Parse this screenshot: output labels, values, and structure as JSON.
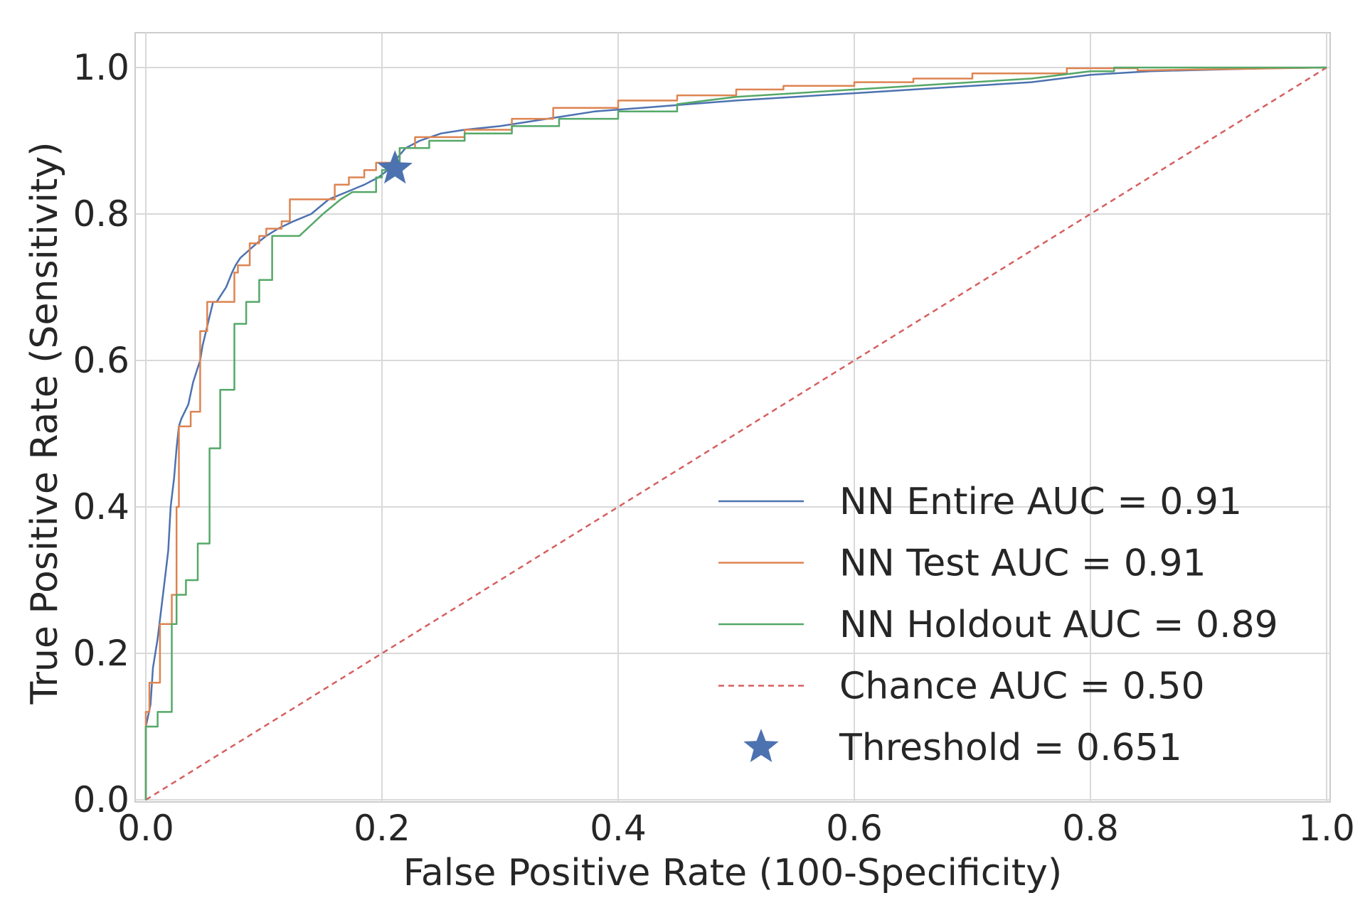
{
  "chart_data": {
    "type": "line",
    "title": "",
    "xlabel": "False Positive Rate (100-Specificity)",
    "ylabel": "True Positive Rate (Sensitivity)",
    "xlim": [
      0.0,
      1.0
    ],
    "ylim": [
      0.0,
      1.0
    ],
    "xticks": [
      0.0,
      0.2,
      0.4,
      0.6,
      0.8,
      1.0
    ],
    "yticks": [
      0.0,
      0.2,
      0.4,
      0.6,
      0.8,
      1.0
    ],
    "xtick_labels": [
      "0.0",
      "0.2",
      "0.4",
      "0.6",
      "0.8",
      "1.0"
    ],
    "ytick_labels": [
      "0.0",
      "0.2",
      "0.4",
      "0.6",
      "0.8",
      "1.0"
    ],
    "grid": true,
    "legend_position": "lower-right",
    "series": [
      {
        "name": "NN Entire AUC = 0.91",
        "color": "#4c72b0",
        "style": "solid",
        "x": [
          0.0,
          0.0,
          0.004,
          0.006,
          0.008,
          0.01,
          0.013,
          0.016,
          0.019,
          0.021,
          0.024,
          0.026,
          0.028,
          0.03,
          0.033,
          0.036,
          0.04,
          0.044,
          0.046,
          0.048,
          0.051,
          0.054,
          0.057,
          0.06,
          0.064,
          0.068,
          0.073,
          0.076,
          0.08,
          0.087,
          0.094,
          0.102,
          0.112,
          0.125,
          0.14,
          0.155,
          0.17,
          0.185,
          0.197,
          0.205,
          0.212,
          0.22,
          0.232,
          0.25,
          0.27,
          0.3,
          0.34,
          0.38,
          0.42,
          0.46,
          0.5,
          0.55,
          0.6,
          0.65,
          0.7,
          0.75,
          0.8,
          0.85,
          0.9,
          0.95,
          1.0
        ],
        "y": [
          0.0,
          0.1,
          0.13,
          0.18,
          0.2,
          0.22,
          0.26,
          0.3,
          0.34,
          0.4,
          0.44,
          0.48,
          0.51,
          0.52,
          0.53,
          0.54,
          0.57,
          0.59,
          0.6,
          0.62,
          0.64,
          0.66,
          0.68,
          0.68,
          0.69,
          0.7,
          0.72,
          0.73,
          0.74,
          0.75,
          0.76,
          0.77,
          0.78,
          0.79,
          0.8,
          0.82,
          0.83,
          0.84,
          0.85,
          0.86,
          0.875,
          0.89,
          0.9,
          0.91,
          0.915,
          0.92,
          0.93,
          0.94,
          0.945,
          0.95,
          0.955,
          0.96,
          0.965,
          0.97,
          0.975,
          0.98,
          0.99,
          0.995,
          0.997,
          0.999,
          1.0
        ]
      },
      {
        "name": "NN Test AUC = 0.91",
        "color": "#dd8452",
        "style": "solid",
        "x": [
          0.0,
          0.0,
          0.003,
          0.003,
          0.012,
          0.012,
          0.022,
          0.022,
          0.026,
          0.026,
          0.028,
          0.028,
          0.038,
          0.038,
          0.046,
          0.046,
          0.052,
          0.052,
          0.06,
          0.06,
          0.075,
          0.075,
          0.078,
          0.078,
          0.088,
          0.088,
          0.096,
          0.096,
          0.102,
          0.102,
          0.115,
          0.115,
          0.122,
          0.122,
          0.13,
          0.13,
          0.16,
          0.16,
          0.172,
          0.172,
          0.185,
          0.185,
          0.195,
          0.195,
          0.215,
          0.215,
          0.228,
          0.228,
          0.27,
          0.27,
          0.31,
          0.31,
          0.345,
          0.345,
          0.4,
          0.4,
          0.45,
          0.45,
          0.5,
          0.5,
          0.54,
          0.54,
          0.6,
          0.6,
          0.65,
          0.65,
          0.7,
          0.7,
          0.78,
          0.78,
          0.84,
          0.84,
          1.0
        ],
        "y": [
          0.0,
          0.12,
          0.12,
          0.16,
          0.16,
          0.24,
          0.24,
          0.28,
          0.28,
          0.4,
          0.4,
          0.51,
          0.51,
          0.53,
          0.53,
          0.64,
          0.64,
          0.68,
          0.68,
          0.68,
          0.68,
          0.72,
          0.72,
          0.73,
          0.73,
          0.76,
          0.76,
          0.77,
          0.77,
          0.78,
          0.78,
          0.79,
          0.79,
          0.82,
          0.82,
          0.82,
          0.82,
          0.84,
          0.84,
          0.85,
          0.85,
          0.86,
          0.86,
          0.87,
          0.87,
          0.89,
          0.89,
          0.905,
          0.905,
          0.915,
          0.915,
          0.93,
          0.93,
          0.945,
          0.945,
          0.955,
          0.955,
          0.962,
          0.962,
          0.97,
          0.97,
          0.975,
          0.975,
          0.98,
          0.98,
          0.985,
          0.985,
          0.992,
          0.992,
          0.999,
          0.999,
          0.996,
          1.0
        ]
      },
      {
        "name": "NN Holdout AUC = 0.89",
        "color": "#55a868",
        "style": "solid",
        "x": [
          0.0,
          0.0,
          0.01,
          0.01,
          0.022,
          0.022,
          0.026,
          0.026,
          0.034,
          0.034,
          0.044,
          0.044,
          0.054,
          0.054,
          0.063,
          0.063,
          0.075,
          0.075,
          0.085,
          0.085,
          0.096,
          0.096,
          0.107,
          0.107,
          0.13,
          0.13,
          0.15,
          0.165,
          0.175,
          0.175,
          0.185,
          0.185,
          0.195,
          0.195,
          0.2,
          0.2,
          0.215,
          0.215,
          0.24,
          0.24,
          0.27,
          0.27,
          0.31,
          0.31,
          0.35,
          0.35,
          0.4,
          0.4,
          0.45,
          0.45,
          0.5,
          0.55,
          0.6,
          0.65,
          0.7,
          0.75,
          0.8,
          0.82,
          0.82,
          0.9,
          1.0
        ],
        "y": [
          0.0,
          0.1,
          0.1,
          0.12,
          0.12,
          0.24,
          0.24,
          0.28,
          0.28,
          0.3,
          0.3,
          0.35,
          0.35,
          0.48,
          0.48,
          0.56,
          0.56,
          0.65,
          0.65,
          0.68,
          0.68,
          0.71,
          0.71,
          0.77,
          0.77,
          0.77,
          0.8,
          0.82,
          0.83,
          0.83,
          0.83,
          0.83,
          0.83,
          0.85,
          0.85,
          0.86,
          0.86,
          0.89,
          0.89,
          0.9,
          0.9,
          0.91,
          0.91,
          0.92,
          0.92,
          0.93,
          0.93,
          0.94,
          0.94,
          0.95,
          0.96,
          0.965,
          0.97,
          0.975,
          0.98,
          0.985,
          0.995,
          0.995,
          1.0,
          1.0,
          1.0
        ]
      },
      {
        "name": "Chance AUC = 0.50",
        "color": "#d65f5f",
        "style": "dashed",
        "x": [
          0.0,
          1.0
        ],
        "y": [
          0.0,
          1.0
        ]
      }
    ],
    "markers": [
      {
        "name": "Threshold = 0.651",
        "color": "#4c72b0",
        "shape": "star",
        "x": 0.211,
        "y": 0.862
      }
    ]
  }
}
